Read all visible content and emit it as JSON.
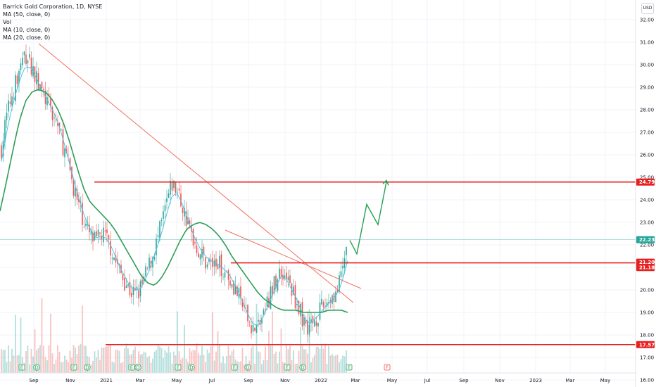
{
  "legend": {
    "title": "Barrick Gold Corporation, 1D, NYSE",
    "ma50": "MA (50, close, 0)",
    "vol": "Vol",
    "ma10": "MA (10, close, 0)",
    "ma20": "MA (20, close, 0)"
  },
  "currency": "USD",
  "chart_data": {
    "type": "candlestick",
    "y_ticks": [
      "16.00",
      "17.00",
      "18.00",
      "19.00",
      "20.00",
      "21.00",
      "22.00",
      "23.00",
      "24.00",
      "25.00",
      "26.00",
      "27.00",
      "28.00",
      "29.00",
      "30.00",
      "31.00",
      "32.00"
    ],
    "x_ticks": [
      "Sep",
      "Nov",
      "2021",
      "Mar",
      "May",
      "Jul",
      "Sep",
      "Nov",
      "2022",
      "Mar",
      "May",
      "Jul",
      "Sep",
      "Nov",
      "2023",
      "Mar",
      "May"
    ],
    "ylim": [
      16,
      32.5
    ],
    "last_price": 22.23,
    "price_path": [
      26.3,
      27.6,
      28.5,
      29.2,
      29.9,
      30.4,
      30.1,
      29.6,
      29.0,
      28.6,
      28.2,
      27.7,
      27.3,
      26.4,
      25.6,
      24.8,
      23.9,
      23.3,
      22.7,
      22.3,
      22.1,
      22.5,
      22.3,
      21.9,
      21.3,
      20.8,
      20.4,
      20.0,
      19.8,
      19.9,
      20.4,
      21.0,
      21.6,
      22.3,
      23.1,
      24.0,
      24.7,
      24.4,
      23.8,
      23.1,
      22.5,
      22.0,
      21.6,
      21.3,
      21.2,
      21.1,
      21.1,
      20.9,
      20.6,
      20.2,
      19.7,
      19.2,
      18.7,
      18.3,
      18.3,
      18.8,
      19.4,
      19.9,
      20.5,
      20.9,
      20.6,
      20.1,
      19.6,
      19.0,
      18.5,
      18.4,
      18.7,
      19.0,
      19.3,
      19.6,
      19.8,
      20.0,
      21.0,
      22.2
    ],
    "ma_fast_path": [
      25.7,
      26.9,
      27.9,
      28.7,
      29.4,
      29.9,
      29.9,
      29.6,
      29.1,
      28.7,
      28.3,
      27.9,
      27.4,
      26.7,
      25.9,
      25.1,
      24.3,
      23.6,
      23.0,
      22.6,
      22.3,
      22.4,
      22.3,
      22.0,
      21.5,
      21.0,
      20.6,
      20.2,
      20.0,
      20.0,
      20.3,
      20.8,
      21.4,
      22.0,
      22.7,
      23.5,
      24.2,
      24.3,
      23.9,
      23.3,
      22.7,
      22.2,
      21.8,
      21.5,
      21.3,
      21.2,
      21.1,
      20.9,
      20.7,
      20.3,
      19.9,
      19.4,
      18.9,
      18.5,
      18.4,
      18.7,
      19.2,
      19.7,
      20.2,
      20.6,
      20.5,
      20.1,
      19.7,
      19.2,
      18.7,
      18.5,
      18.7,
      18.9,
      19.2,
      19.4,
      19.6,
      19.9,
      20.5,
      21.3
    ],
    "ma_slow_path": [
      23.5,
      24.8,
      26.2,
      27.5,
      28.4,
      28.8,
      28.9,
      28.8,
      28.5,
      28.0,
      27.3,
      26.4,
      25.4,
      24.5,
      23.9,
      23.6,
      23.3,
      23.0,
      22.6,
      22.1,
      21.6,
      21.1,
      20.6,
      20.3,
      20.2,
      20.5,
      21.0,
      21.6,
      22.2,
      22.7,
      22.9,
      23.0,
      22.9,
      22.7,
      22.4,
      22.0,
      21.5,
      21.1,
      20.7,
      20.3,
      19.9,
      19.6,
      19.4,
      19.2,
      19.1,
      19.1,
      19.1,
      19.0,
      19.0,
      19.0,
      19.0,
      19.1,
      19.1,
      19.1,
      19.0
    ],
    "levels": [
      {
        "price": 24.79,
        "label": "24.79"
      },
      {
        "price": 21.2,
        "label": "21.20"
      },
      {
        "price": 21.18,
        "label": "21.18"
      },
      {
        "price": 17.57,
        "label": "17.57"
      }
    ],
    "projection": [
      22.2,
      21.6,
      23.8,
      22.9,
      24.8
    ],
    "events": [
      "E",
      "D",
      "E",
      "D",
      "E",
      "D",
      "E",
      "D",
      "E",
      "D",
      "E",
      "D",
      "E",
      "F"
    ],
    "colors": {
      "up": "#26a69a",
      "down": "#ef5350",
      "ma_fast": "#4dc0e8",
      "ma_slow": "#2e9e57",
      "level": "#e62020",
      "trend": "#f07060",
      "projection": "#23a050",
      "last_price": "#26a69a"
    }
  }
}
